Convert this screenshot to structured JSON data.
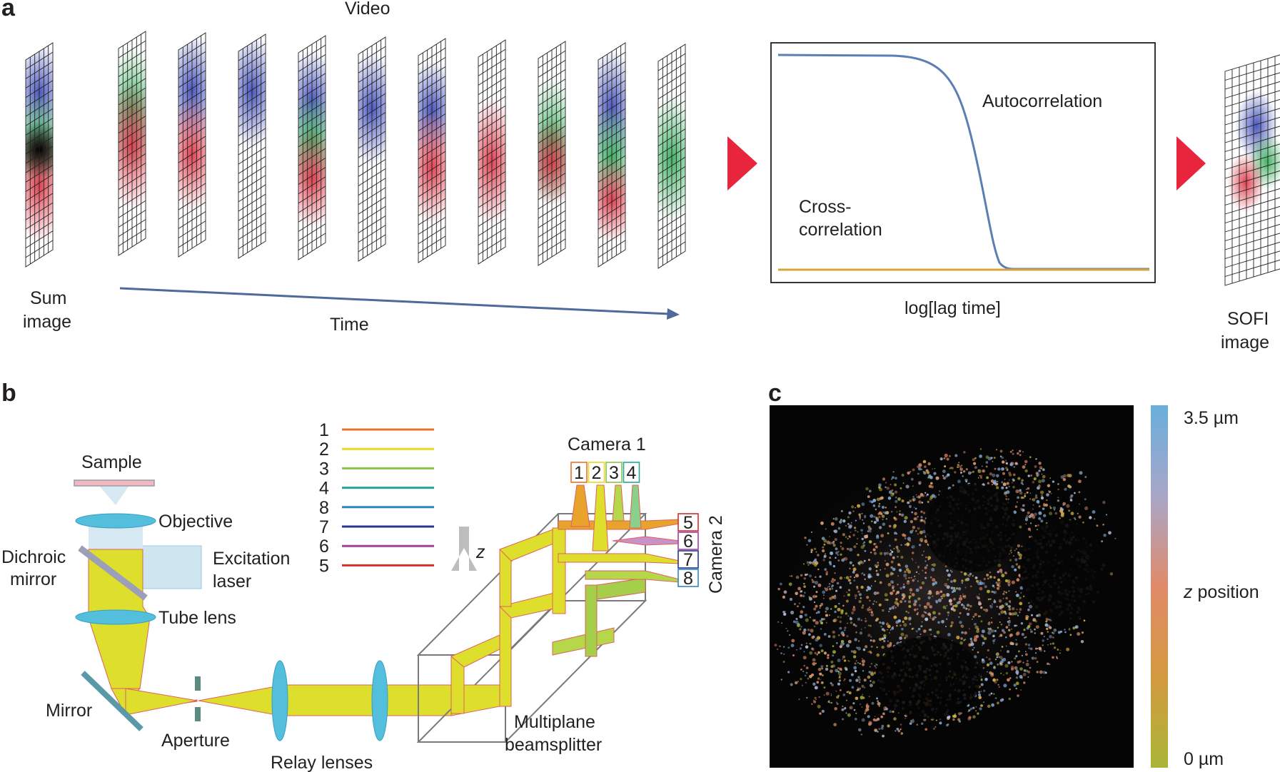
{
  "panels": {
    "a": "a",
    "b": "b",
    "c": "c"
  },
  "panel_a": {
    "video_label": "Video",
    "sum_label_1": "Sum",
    "sum_label_2": "image",
    "time_label": "Time",
    "autocorrelation": "Autocorrelation",
    "crosscorr_1": "Cross-",
    "crosscorr_2": "correlation",
    "lag_label": "log[lag time]",
    "sofi_1": "SOFI",
    "sofi_2": "image",
    "colors": {
      "arrow": "#e8253c",
      "time_arrow": "#4d6a9a",
      "autocorr": "#5b7fb4",
      "crosscorr": "#d7a43c"
    }
  },
  "panel_b": {
    "sample": "Sample",
    "objective": "Objective",
    "dichroic_1": "Dichroic",
    "dichroic_2": "mirror",
    "excitation_1": "Excitation",
    "excitation_2": "laser",
    "tube_lens": "Tube lens",
    "mirror": "Mirror",
    "aperture": "Aperture",
    "relay": "Relay lenses",
    "mp_1": "Multiplane",
    "mp_2": "beamsplitter",
    "camera1": "Camera 1",
    "camera2": "Camera 2",
    "z_axis": "z",
    "legend": [
      {
        "num": "1",
        "color": "#e8732d"
      },
      {
        "num": "2",
        "color": "#e8d926"
      },
      {
        "num": "3",
        "color": "#8bc34a"
      },
      {
        "num": "4",
        "color": "#26a69a"
      },
      {
        "num": "8",
        "color": "#2e86c1"
      },
      {
        "num": "7",
        "color": "#283593"
      },
      {
        "num": "6",
        "color": "#a23fa0"
      },
      {
        "num": "5",
        "color": "#d32f2f"
      }
    ],
    "camera1_boxes": [
      {
        "num": "1",
        "color": "#e8732d"
      },
      {
        "num": "2",
        "color": "#e8d926"
      },
      {
        "num": "3",
        "color": "#8bc34a"
      },
      {
        "num": "4",
        "color": "#26a69a"
      }
    ],
    "camera2_boxes": [
      {
        "num": "5",
        "color": "#d32f2f"
      },
      {
        "num": "6",
        "color": "#a23fa0"
      },
      {
        "num": "7",
        "color": "#283593"
      },
      {
        "num": "8",
        "color": "#2e86c1"
      }
    ],
    "colors": {
      "beam": "#e3e432",
      "lens": "#54bfdc",
      "excitation": "#cfe5f0"
    }
  },
  "panel_c": {
    "scale_top": "3.5 µm",
    "scale_mid_italic": "z",
    "scale_mid": " position",
    "scale_bottom": "0 µm",
    "colorbar": {
      "top": "#6aaedc",
      "middle": "#e08a6a",
      "bottom": "#a9b436"
    }
  }
}
